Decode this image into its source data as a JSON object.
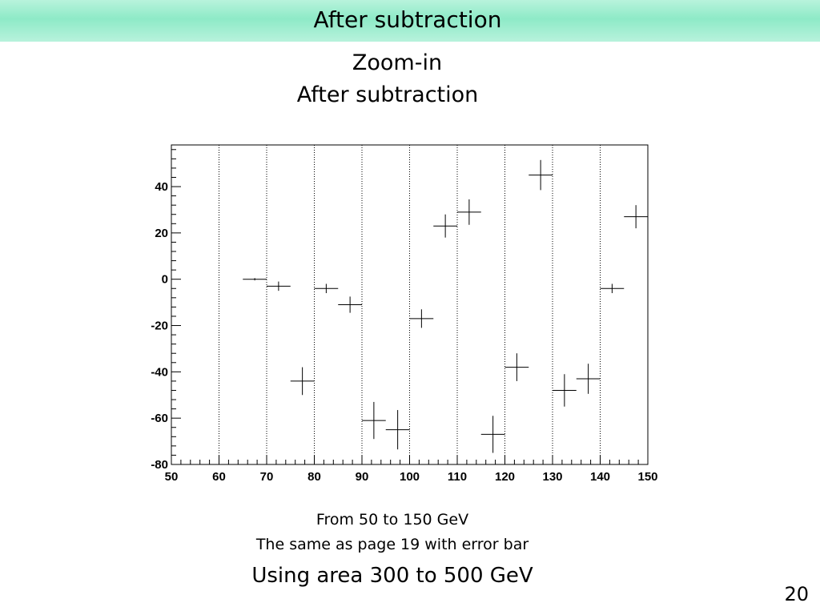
{
  "header": {
    "title": "After subtraction"
  },
  "plot_title": {
    "line1": "Zoom-in",
    "line2": "After subtraction"
  },
  "captions": {
    "line1": "From 50 to 150 GeV",
    "line2": "The same as page 19 with error bar",
    "line3": "Using area 300 to 500 GeV"
  },
  "page_number": "20",
  "colors": {
    "banner": "#8eeac7",
    "marker": "#000000",
    "grid": "#000000"
  },
  "chart_data": {
    "type": "scatter",
    "title": "Zoom-in After subtraction",
    "xlabel": "",
    "ylabel": "",
    "xlim": [
      50,
      150
    ],
    "ylim": [
      -80,
      58
    ],
    "x_ticks": [
      50,
      60,
      70,
      80,
      90,
      100,
      110,
      120,
      130,
      140,
      150
    ],
    "y_ticks": [
      -80,
      -60,
      -40,
      -20,
      0,
      20,
      40
    ],
    "grid": "vertical dotted",
    "points": [
      {
        "x": 67.5,
        "y": 0,
        "xerr": 2.5,
        "yerr": 0.5
      },
      {
        "x": 72.5,
        "y": -3,
        "xerr": 2.5,
        "yerr": 2
      },
      {
        "x": 77.5,
        "y": -44,
        "xerr": 2.5,
        "yerr": 6
      },
      {
        "x": 82.5,
        "y": -4,
        "xerr": 2.5,
        "yerr": 2
      },
      {
        "x": 87.5,
        "y": -11,
        "xerr": 2.5,
        "yerr": 3.5
      },
      {
        "x": 92.5,
        "y": -61,
        "xerr": 2.5,
        "yerr": 8
      },
      {
        "x": 97.5,
        "y": -65,
        "xerr": 2.5,
        "yerr": 8.5
      },
      {
        "x": 102.5,
        "y": -17,
        "xerr": 2.5,
        "yerr": 4
      },
      {
        "x": 107.5,
        "y": 23,
        "xerr": 2.5,
        "yerr": 5
      },
      {
        "x": 112.5,
        "y": 29,
        "xerr": 2.5,
        "yerr": 5.5
      },
      {
        "x": 117.5,
        "y": -67,
        "xerr": 2.5,
        "yerr": 8
      },
      {
        "x": 122.5,
        "y": -38,
        "xerr": 2.5,
        "yerr": 6
      },
      {
        "x": 127.5,
        "y": 45,
        "xerr": 2.5,
        "yerr": 6.5
      },
      {
        "x": 132.5,
        "y": -48,
        "xerr": 2.5,
        "yerr": 7
      },
      {
        "x": 137.5,
        "y": -43,
        "xerr": 2.5,
        "yerr": 6.5
      },
      {
        "x": 142.5,
        "y": -4,
        "xerr": 2.5,
        "yerr": 2
      },
      {
        "x": 147.5,
        "y": 27,
        "xerr": 2.5,
        "yerr": 5
      }
    ]
  }
}
